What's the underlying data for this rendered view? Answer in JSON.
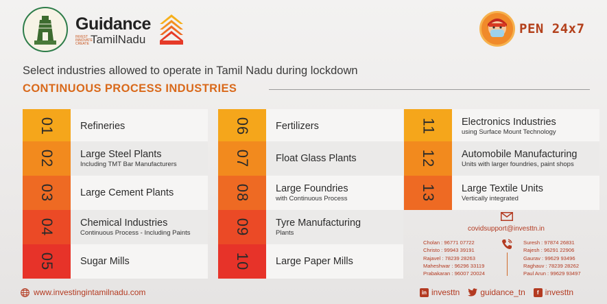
{
  "header": {
    "brand_word": "Guidance",
    "brand_tagline": "INVEST INNOVATE CREATE",
    "brand_sub": "TamilNadu",
    "pen_text": "PEN 24x7",
    "headline": "Select industries allowed to operate in Tamil Nadu during lockdown",
    "section_title": "CONTINUOUS PROCESS INDUSTRIES"
  },
  "industries": [
    {
      "num": "01",
      "title": "Refineries",
      "sub": ""
    },
    {
      "num": "02",
      "title": "Large Steel Plants",
      "sub": "Including TMT Bar Manufacturers"
    },
    {
      "num": "03",
      "title": "Large Cement Plants",
      "sub": ""
    },
    {
      "num": "04",
      "title": "Chemical Industries",
      "sub": "Continuous Process - Including Paints"
    },
    {
      "num": "05",
      "title": "Sugar Mills",
      "sub": ""
    },
    {
      "num": "06",
      "title": "Fertilizers",
      "sub": ""
    },
    {
      "num": "07",
      "title": "Float Glass Plants",
      "sub": ""
    },
    {
      "num": "08",
      "title": "Large Foundries",
      "sub": "with Continuous Process"
    },
    {
      "num": "09",
      "title": "Tyre Manufacturing",
      "sub": "Plants"
    },
    {
      "num": "10",
      "title": "Large Paper Mills",
      "sub": ""
    },
    {
      "num": "11",
      "title": "Electronics Industries",
      "sub": "using Surface Mount Technology"
    },
    {
      "num": "12",
      "title": "Automobile Manufacturing",
      "sub": "Units with larger foundries, paint shops"
    },
    {
      "num": "13",
      "title": "Large Textile Units",
      "sub": "Vertically integrated"
    }
  ],
  "colors": {
    "n01": "#f5a61b",
    "n02": "#f28a1e",
    "n03": "#ee6a23",
    "n04": "#eb4a26",
    "n05": "#e73329",
    "n06": "#f5a61b",
    "n07": "#f28a1e",
    "n08": "#ee6a23",
    "n09": "#eb4a26",
    "n10": "#e73329",
    "n11": "#f5a61b",
    "n12": "#f28a1e",
    "n13": "#ee6a23"
  },
  "contacts": {
    "email": "covidsupport@investtn.in",
    "left": [
      "Cholan : 96771 07722",
      "Christo : 99943 39191",
      "Rajavel : 78239 28263",
      "Maheshwar : 96296 33119",
      "Prabakaran : 96007 20024"
    ],
    "right": [
      "Suresh : 97874 26831",
      "Rajesh : 96291 22906",
      "Gaurav : 99629 93496",
      "Raghauv : 78239 28262",
      "Paul Arun : 99629 93497"
    ]
  },
  "footer": {
    "website": "www.investingintamilnadu.com",
    "linkedin": "investtn",
    "twitter": "guidance_tn",
    "facebook": "investtn"
  }
}
